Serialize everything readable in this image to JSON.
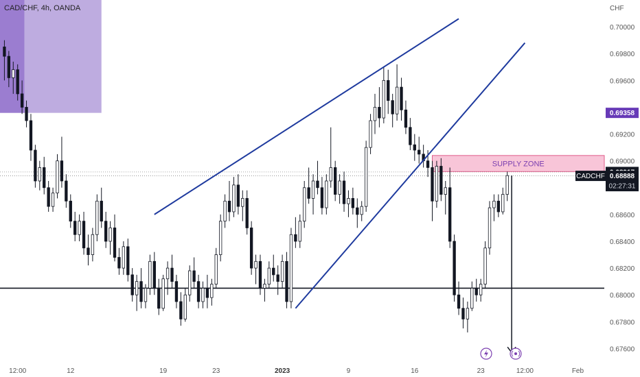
{
  "chart_data": {
    "type": "candlestick",
    "title": "CAD/CHF, 4h, OANDA",
    "currency_label": "CHF",
    "y_ticks": [
      0.676,
      0.678,
      0.68,
      0.682,
      0.684,
      0.686,
      0.69,
      0.692,
      0.696,
      0.698,
      0.7
    ],
    "ylim": [
      0.675,
      0.702
    ],
    "x_ticks": [
      {
        "label": "12:00",
        "index": 3
      },
      {
        "label": "12",
        "index": 15
      },
      {
        "label": "19",
        "index": 36
      },
      {
        "label": "23",
        "index": 48
      },
      {
        "label": "2023",
        "index": 63,
        "bold": true
      },
      {
        "label": "9",
        "index": 78
      },
      {
        "label": "16",
        "index": 93
      },
      {
        "label": "23",
        "index": 108
      },
      {
        "label": "12:00",
        "index": 118
      },
      {
        "label": "Feb",
        "index": 130
      }
    ],
    "xlim": [
      -1,
      136
    ],
    "candles": [
      [
        0.6985,
        0.699,
        0.696,
        0.6978
      ],
      [
        0.6978,
        0.6982,
        0.6955,
        0.6962
      ],
      [
        0.6962,
        0.6974,
        0.695,
        0.6968
      ],
      [
        0.6968,
        0.6972,
        0.6945,
        0.695
      ],
      [
        0.695,
        0.696,
        0.6935,
        0.694
      ],
      [
        0.694,
        0.6945,
        0.6925,
        0.693
      ],
      [
        0.693,
        0.6935,
        0.69,
        0.6908
      ],
      [
        0.6908,
        0.6912,
        0.688,
        0.6885
      ],
      [
        0.6885,
        0.69,
        0.6878,
        0.6895
      ],
      [
        0.6895,
        0.6903,
        0.6875,
        0.688
      ],
      [
        0.688,
        0.6885,
        0.6862,
        0.6866
      ],
      [
        0.6866,
        0.688,
        0.6862,
        0.6876
      ],
      [
        0.6876,
        0.6905,
        0.6872,
        0.69
      ],
      [
        0.69,
        0.6918,
        0.688,
        0.6885
      ],
      [
        0.6885,
        0.689,
        0.6865,
        0.687
      ],
      [
        0.687,
        0.6875,
        0.685,
        0.6855
      ],
      [
        0.6855,
        0.6862,
        0.684,
        0.6845
      ],
      [
        0.6845,
        0.686,
        0.684,
        0.6855
      ],
      [
        0.6855,
        0.6862,
        0.683,
        0.6835
      ],
      [
        0.6835,
        0.6845,
        0.6822,
        0.683
      ],
      [
        0.683,
        0.685,
        0.6825,
        0.6845
      ],
      [
        0.6845,
        0.6875,
        0.684,
        0.687
      ],
      [
        0.687,
        0.688,
        0.685,
        0.6855
      ],
      [
        0.6855,
        0.6862,
        0.6835,
        0.684
      ],
      [
        0.684,
        0.6855,
        0.683,
        0.685
      ],
      [
        0.685,
        0.686,
        0.6825,
        0.6828
      ],
      [
        0.6828,
        0.6835,
        0.6815,
        0.682
      ],
      [
        0.682,
        0.684,
        0.6815,
        0.6836
      ],
      [
        0.6836,
        0.6842,
        0.681,
        0.6815
      ],
      [
        0.6815,
        0.682,
        0.6795,
        0.68
      ],
      [
        0.68,
        0.6815,
        0.6788,
        0.681
      ],
      [
        0.681,
        0.682,
        0.679,
        0.6795
      ],
      [
        0.6795,
        0.6808,
        0.679,
        0.6805
      ],
      [
        0.6805,
        0.683,
        0.68,
        0.6825
      ],
      [
        0.6825,
        0.6832,
        0.68,
        0.6805
      ],
      [
        0.6805,
        0.6812,
        0.6785,
        0.679
      ],
      [
        0.679,
        0.6815,
        0.6788,
        0.6812
      ],
      [
        0.6812,
        0.6825,
        0.68,
        0.682
      ],
      [
        0.682,
        0.683,
        0.6805,
        0.681
      ],
      [
        0.681,
        0.6815,
        0.679,
        0.6795
      ],
      [
        0.6795,
        0.6802,
        0.6777,
        0.6782
      ],
      [
        0.6782,
        0.6805,
        0.678,
        0.68
      ],
      [
        0.68,
        0.6822,
        0.6795,
        0.6818
      ],
      [
        0.6818,
        0.6828,
        0.6805,
        0.681
      ],
      [
        0.681,
        0.6815,
        0.679,
        0.6795
      ],
      [
        0.6795,
        0.681,
        0.679,
        0.6805
      ],
      [
        0.6805,
        0.6815,
        0.679,
        0.6798
      ],
      [
        0.6798,
        0.6812,
        0.6792,
        0.6808
      ],
      [
        0.6808,
        0.6835,
        0.6805,
        0.683
      ],
      [
        0.683,
        0.686,
        0.6825,
        0.6855
      ],
      [
        0.6855,
        0.6875,
        0.685,
        0.687
      ],
      [
        0.687,
        0.6885,
        0.6855,
        0.6862
      ],
      [
        0.6862,
        0.6888,
        0.6858,
        0.6882
      ],
      [
        0.6882,
        0.689,
        0.686,
        0.6866
      ],
      [
        0.6866,
        0.6878,
        0.6855,
        0.6872
      ],
      [
        0.6872,
        0.6878,
        0.6845,
        0.685
      ],
      [
        0.685,
        0.6855,
        0.6815,
        0.682
      ],
      [
        0.682,
        0.683,
        0.6808,
        0.6825
      ],
      [
        0.6825,
        0.683,
        0.68,
        0.6805
      ],
      [
        0.6805,
        0.6812,
        0.6795,
        0.6808
      ],
      [
        0.6808,
        0.6825,
        0.6805,
        0.682
      ],
      [
        0.682,
        0.683,
        0.681,
        0.6815
      ],
      [
        0.6815,
        0.6822,
        0.68,
        0.681
      ],
      [
        0.681,
        0.683,
        0.6805,
        0.6825
      ],
      [
        0.6825,
        0.6832,
        0.679,
        0.6795
      ],
      [
        0.6795,
        0.685,
        0.679,
        0.6845
      ],
      [
        0.6845,
        0.6858,
        0.6835,
        0.684
      ],
      [
        0.684,
        0.686,
        0.6835,
        0.6855
      ],
      [
        0.6855,
        0.6885,
        0.685,
        0.688
      ],
      [
        0.688,
        0.6895,
        0.6868,
        0.6872
      ],
      [
        0.6872,
        0.689,
        0.686,
        0.6885
      ],
      [
        0.6885,
        0.69,
        0.6875,
        0.688
      ],
      [
        0.688,
        0.6888,
        0.686,
        0.6865
      ],
      [
        0.6865,
        0.689,
        0.686,
        0.6885
      ],
      [
        0.6885,
        0.6925,
        0.688,
        0.6895
      ],
      [
        0.6895,
        0.69,
        0.687,
        0.6875
      ],
      [
        0.6875,
        0.689,
        0.6868,
        0.6885
      ],
      [
        0.6885,
        0.6892,
        0.6862,
        0.6868
      ],
      [
        0.6868,
        0.6878,
        0.6858,
        0.6872
      ],
      [
        0.6872,
        0.688,
        0.686,
        0.6865
      ],
      [
        0.6865,
        0.6872,
        0.685,
        0.686
      ],
      [
        0.686,
        0.687,
        0.6855,
        0.6866
      ],
      [
        0.6866,
        0.6915,
        0.6862,
        0.691
      ],
      [
        0.691,
        0.6935,
        0.6905,
        0.693
      ],
      [
        0.693,
        0.695,
        0.692,
        0.694
      ],
      [
        0.694,
        0.6955,
        0.6925,
        0.6932
      ],
      [
        0.6932,
        0.697,
        0.6928,
        0.696
      ],
      [
        0.696,
        0.6968,
        0.6935,
        0.6945
      ],
      [
        0.6945,
        0.695,
        0.6925,
        0.6935
      ],
      [
        0.6935,
        0.6972,
        0.693,
        0.6955
      ],
      [
        0.6955,
        0.6962,
        0.693,
        0.6938
      ],
      [
        0.6938,
        0.6945,
        0.692,
        0.6925
      ],
      [
        0.6925,
        0.6932,
        0.6908,
        0.6912
      ],
      [
        0.6912,
        0.692,
        0.69,
        0.6908
      ],
      [
        0.6908,
        0.6918,
        0.6898,
        0.6905
      ],
      [
        0.6905,
        0.6912,
        0.6895,
        0.69
      ],
      [
        0.69,
        0.6908,
        0.6888,
        0.6895
      ],
      [
        0.6895,
        0.69,
        0.6855,
        0.687
      ],
      [
        0.687,
        0.69,
        0.6865,
        0.6896
      ],
      [
        0.6896,
        0.6902,
        0.687,
        0.6875
      ],
      [
        0.6875,
        0.6885,
        0.686,
        0.688
      ],
      [
        0.688,
        0.6895,
        0.6835,
        0.684
      ],
      [
        0.684,
        0.6845,
        0.6795,
        0.68
      ],
      [
        0.68,
        0.681,
        0.6785,
        0.679
      ],
      [
        0.679,
        0.6798,
        0.6775,
        0.6782
      ],
      [
        0.6782,
        0.6795,
        0.6772,
        0.679
      ],
      [
        0.679,
        0.681,
        0.6788,
        0.6805
      ],
      [
        0.6805,
        0.6812,
        0.6795,
        0.68
      ],
      [
        0.68,
        0.6812,
        0.6795,
        0.6808
      ],
      [
        0.6808,
        0.684,
        0.6805,
        0.6835
      ],
      [
        0.6835,
        0.687,
        0.683,
        0.6865
      ],
      [
        0.6865,
        0.6875,
        0.6855,
        0.687
      ],
      [
        0.687,
        0.6875,
        0.6858,
        0.6862
      ],
      [
        0.6862,
        0.688,
        0.686,
        0.6875
      ],
      [
        0.6875,
        0.6892,
        0.687,
        0.6889
      ]
    ],
    "price_lines": [
      {
        "value": 0.68917,
        "label": "0.68917",
        "bg": "#131722",
        "fg": "#ffffff"
      },
      {
        "value": 0.68888,
        "label": "0.68888",
        "bg": "#131722",
        "fg": "#ffffff",
        "symbol": "CADCHF",
        "countdown": "02:27:31"
      },
      {
        "value": 0.69358,
        "label": "0.69358",
        "bg": "#673ab7",
        "fg": "#ffffff"
      }
    ],
    "horizontal_level": 0.6805,
    "supply_zone": {
      "label": "SUPPLY ZONE",
      "top": 0.6904,
      "bottom": 0.6892,
      "start_index": 97,
      "color": "#f8c5d8",
      "border": "#e05c8a",
      "text_color": "#7b3fb0"
    },
    "rising_wedge": {
      "upper": [
        {
          "i": 34,
          "v": 0.686
        },
        {
          "i": 103,
          "v": 0.7006
        }
      ],
      "lower": [
        {
          "i": 66,
          "v": 0.679
        },
        {
          "i": 118,
          "v": 0.6988
        }
      ]
    },
    "arrow": {
      "from": {
        "i": 115,
        "v": 0.6889
      },
      "to": {
        "i": 115,
        "v": 0.6757
      }
    },
    "highlight_box": {
      "start_index": -1,
      "end_index": 22,
      "top": 0.702,
      "bottom": 0.69358,
      "color": "#b39ddb"
    },
    "colors": {
      "candle": "#131722",
      "line": "#1e3a9e",
      "level": "#131722",
      "price_grid": "#888888"
    }
  },
  "axis": {
    "currency": "CHF"
  },
  "icons": {
    "lightning": "lightning-icon",
    "event": "event-marker-icon"
  }
}
